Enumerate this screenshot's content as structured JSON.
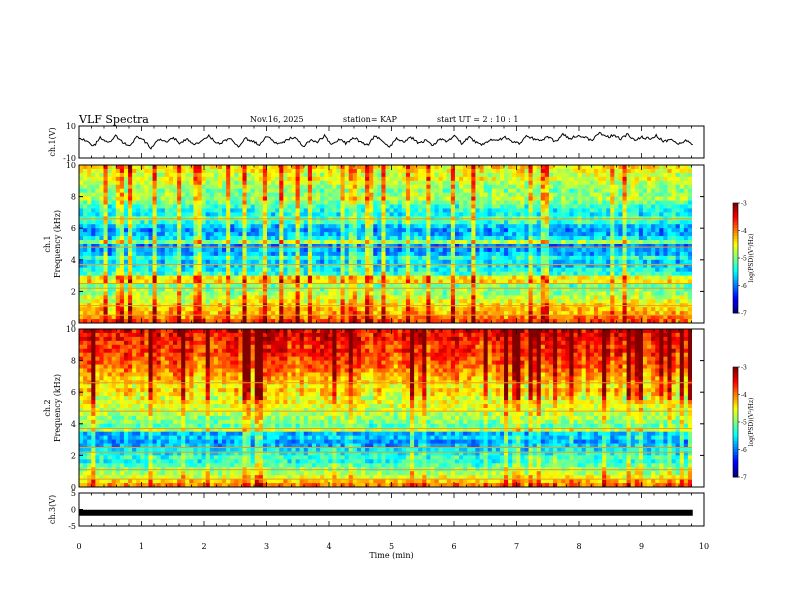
{
  "header": {
    "title": "VLF Spectra",
    "date": "Nov.16, 2025",
    "station": "station= KAP",
    "start": "start  UT  =   2  : 10 : 1"
  },
  "chart_data": [
    {
      "type": "line",
      "ylabel": "ch.1(V)",
      "ylim": [
        -10,
        10
      ],
      "yticks": [
        "10",
        "-10"
      ],
      "xlim": [
        0,
        10
      ],
      "x_start": 0,
      "x_end": 9.82,
      "values": [
        2,
        1,
        -3,
        3,
        -1,
        4,
        0,
        -2,
        3,
        1,
        -4,
        2,
        0,
        3,
        -1,
        2,
        -2,
        1,
        4,
        -1,
        0,
        3,
        -3,
        2,
        1,
        -2,
        4,
        0,
        -1,
        2,
        3,
        -3,
        1,
        0,
        4,
        -2,
        2,
        -1,
        3,
        0,
        -2,
        4,
        1,
        -3,
        2,
        0,
        3,
        -1,
        1,
        -2,
        2,
        0,
        4,
        -1,
        3,
        0,
        -2,
        2,
        1,
        3,
        0,
        -1,
        4,
        2,
        1,
        3,
        0,
        5,
        2,
        4,
        3,
        1,
        6,
        3,
        4,
        2,
        5,
        1,
        3,
        2,
        4,
        0,
        2,
        -1,
        1,
        -2
      ]
    },
    {
      "type": "heatmap",
      "ylabel": "ch.1\nFrequency  (kHz)",
      "ylim": [
        0,
        10
      ],
      "yticks": [
        "0",
        "2",
        "4",
        "6",
        "8",
        "10"
      ],
      "xlim": [
        0,
        9.82
      ],
      "colorbar": {
        "label": "log(PSD)(V²/Hz)",
        "range": [
          -7,
          -3
        ],
        "ticks": [
          "-3",
          "-4",
          "-5",
          "-6",
          "-7"
        ]
      },
      "freq_profile_log_psd": [
        -3.8,
        -4.0,
        -4.2,
        -4.3,
        -4.4,
        -4.6,
        -4.7,
        -4.9,
        -5.0,
        -5.1,
        -4.4,
        -4.5,
        -5.3,
        -5.5,
        -5.6,
        -5.7,
        -5.4,
        -5.8,
        -5.9,
        -6.0,
        -4.9,
        -5.6,
        -5.8,
        -5.9,
        -5.7,
        -5.3,
        -5.2,
        -5.5,
        -5.4,
        -5.3,
        -5.1,
        -4.8,
        -4.9,
        -5.0,
        -4.9,
        -4.8,
        -4.6,
        -4.7,
        -4.5,
        -4.4
      ]
    },
    {
      "type": "heatmap",
      "ylabel": "ch.2\nFrequency  (kHz)",
      "ylim": [
        0,
        10
      ],
      "yticks": [
        "0",
        "2",
        "4",
        "6",
        "8",
        "10"
      ],
      "xlim": [
        0,
        9.82
      ],
      "colorbar": {
        "label": "log(PSD)(V²/Hz)",
        "range": [
          -7,
          -3
        ],
        "ticks": [
          "-3",
          "-4",
          "-5",
          "-6",
          "-7"
        ]
      },
      "freq_profile_log_psd": [
        -4.0,
        -4.3,
        -4.6,
        -4.8,
        -5.0,
        -5.2,
        -5.4,
        -5.3,
        -5.5,
        -5.6,
        -5.8,
        -5.9,
        -5.7,
        -5.8,
        -4.8,
        -5.2,
        -5.0,
        -4.9,
        -4.8,
        -4.7,
        -4.6,
        -4.5,
        -4.6,
        -4.4,
        -4.3,
        -4.5,
        -4.3,
        -4.2,
        -4.1,
        -4.0,
        -3.9,
        -3.8,
        -3.8,
        -3.7,
        -3.6,
        -3.7,
        -3.6,
        -3.5,
        -3.5,
        -3.4
      ]
    },
    {
      "type": "line",
      "ylabel": "ch.3(V)",
      "ylim": [
        -5,
        5
      ],
      "yticks": [
        "5",
        "0",
        "-5"
      ],
      "xlim": [
        0,
        10
      ],
      "x_start": 0,
      "x_end": 9.82,
      "values": [
        -1,
        -1
      ]
    }
  ],
  "xaxis": {
    "label": "Time  (min)",
    "ticks": [
      "0",
      "1",
      "2",
      "3",
      "4",
      "5",
      "6",
      "7",
      "8",
      "9",
      "10"
    ]
  }
}
